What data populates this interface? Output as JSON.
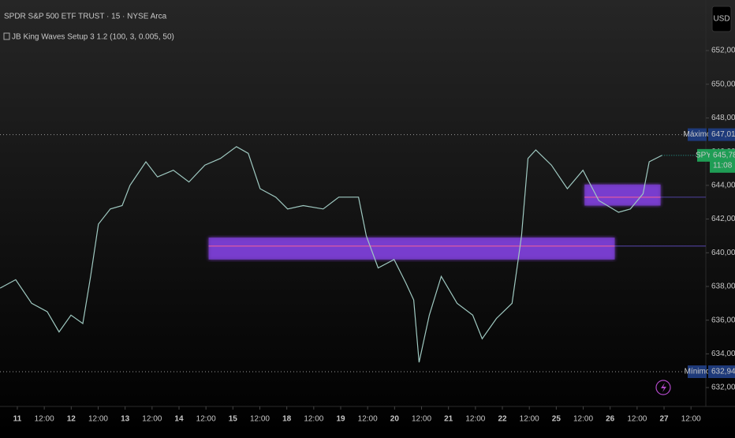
{
  "chart_data": {
    "type": "line",
    "title": "SPDR S&P 500 ETF TRUST · 15 · NYSE Arca",
    "subtitle": "JB King Waves Setup 3 1.2 (100, 3, 0.005, 50)",
    "currency": "USD",
    "color": "#9fc9c1",
    "x": [
      -0.64,
      -0.06,
      0.53,
      1.11,
      1.55,
      1.99,
      2.43,
      2.72,
      3.01,
      3.45,
      3.89,
      4.18,
      4.77,
      5.2,
      5.79,
      6.37,
      6.96,
      7.54,
      8.13,
      8.57,
      9.01,
      9.59,
      10.03,
      10.61,
      11.35,
      11.93,
      12.66,
      12.95,
      13.39,
      13.98,
      14.42,
      14.71,
      14.91,
      15.29,
      15.73,
      16.32,
      16.9,
      17.25,
      17.78,
      18.36,
      18.71,
      18.95,
      19.24,
      19.82,
      20.41,
      20.99,
      21.58,
      22.31,
      22.75,
      23.22,
      23.45,
      23.92
    ],
    "values": [
      637.9,
      638.4,
      637,
      636.5,
      635.3,
      636.3,
      635.8,
      638.6,
      641.7,
      642.6,
      642.8,
      644,
      645.4,
      644.5,
      644.9,
      644.2,
      645.2,
      645.6,
      646.3,
      645.9,
      643.8,
      643.3,
      642.6,
      642.8,
      642.6,
      643.3,
      643.3,
      641,
      639.1,
      639.6,
      638.2,
      637.2,
      633.5,
      636.3,
      638.6,
      637,
      636.3,
      634.9,
      636.1,
      637,
      641,
      645.6,
      646.1,
      645.2,
      643.8,
      644.9,
      643.1,
      642.4,
      642.6,
      643.5,
      645.4,
      645.78
    ],
    "xlim": [
      -0.643,
      25.55
    ],
    "xticks": [
      {
        "value": 0,
        "label": "11"
      },
      {
        "value": 1,
        "label": "12:00"
      },
      {
        "value": 2,
        "label": "12"
      },
      {
        "value": 3,
        "label": "12:00"
      },
      {
        "value": 4,
        "label": "13"
      },
      {
        "value": 5,
        "label": "12:00"
      },
      {
        "value": 6,
        "label": "14"
      },
      {
        "value": 7,
        "label": "12:00"
      },
      {
        "value": 8,
        "label": "15"
      },
      {
        "value": 9,
        "label": "12:00"
      },
      {
        "value": 10,
        "label": "18"
      },
      {
        "value": 11,
        "label": "12:00"
      },
      {
        "value": 12,
        "label": "19"
      },
      {
        "value": 13,
        "label": "12:00"
      },
      {
        "value": 14,
        "label": "20"
      },
      {
        "value": 15,
        "label": "12:00"
      },
      {
        "value": 16,
        "label": "21"
      },
      {
        "value": 17,
        "label": "12:00"
      },
      {
        "value": 18,
        "label": "22"
      },
      {
        "value": 19,
        "label": "12:00"
      },
      {
        "value": 20,
        "label": "25"
      },
      {
        "value": 21,
        "label": "12:00"
      },
      {
        "value": 22,
        "label": "26"
      },
      {
        "value": 23,
        "label": "12:00"
      },
      {
        "value": 24,
        "label": "27"
      },
      {
        "value": 25,
        "label": "12:00"
      }
    ],
    "ylim": [
      630.88,
      655.0
    ],
    "yticks": [
      {
        "value": 632,
        "label": "632,00"
      },
      {
        "value": 634,
        "label": "634,00"
      },
      {
        "value": 636,
        "label": "636,00"
      },
      {
        "value": 638,
        "label": "638,00"
      },
      {
        "value": 640,
        "label": "640,00"
      },
      {
        "value": 642,
        "label": "642,00"
      },
      {
        "value": 644,
        "label": "644,00"
      },
      {
        "value": 646,
        "label": "646,00"
      },
      {
        "value": 648,
        "label": "648,00"
      },
      {
        "value": 650,
        "label": "650,00"
      },
      {
        "value": 652,
        "label": "652,00"
      }
    ],
    "max_line": {
      "name": "Máximo",
      "value": 647.01,
      "label": "647,01"
    },
    "min_line": {
      "name": "Mínimo",
      "value": 632.94,
      "label": "632,94"
    },
    "last_price": {
      "symbol": "SPY",
      "value": 645.78,
      "label": "645,78",
      "countdown": "11:08"
    },
    "zones": [
      {
        "x": [
          7.1,
          22.17
        ],
        "y": [
          639.6,
          640.9
        ],
        "level": 640.4
      },
      {
        "x": [
          21.05,
          23.87
        ],
        "y": [
          642.8,
          644.05
        ],
        "level": 643.3
      }
    ]
  }
}
